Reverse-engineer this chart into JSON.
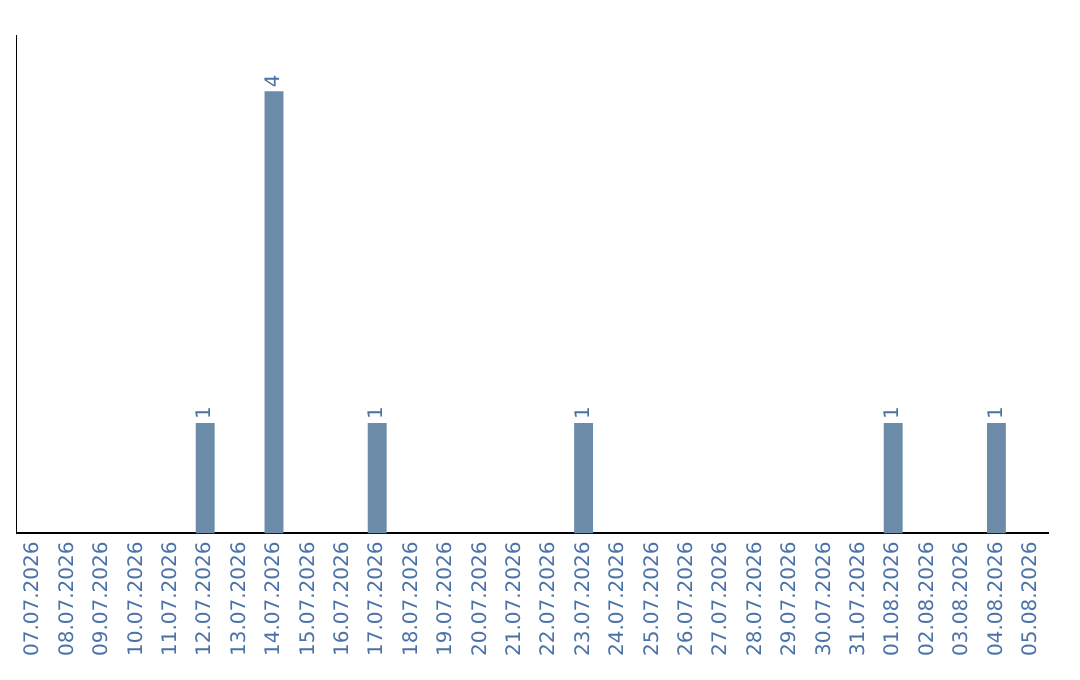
{
  "chart_data": {
    "type": "bar",
    "categories": [
      "07.07.2026",
      "08.07.2026",
      "09.07.2026",
      "10.07.2026",
      "11.07.2026",
      "12.07.2026",
      "13.07.2026",
      "14.07.2026",
      "15.07.2026",
      "16.07.2026",
      "17.07.2026",
      "18.07.2026",
      "19.07.2026",
      "20.07.2026",
      "21.07.2026",
      "22.07.2026",
      "23.07.2026",
      "24.07.2026",
      "25.07.2026",
      "26.07.2026",
      "27.07.2026",
      "28.07.2026",
      "29.07.2026",
      "30.07.2026",
      "31.07.2026",
      "01.08.2026",
      "02.08.2026",
      "03.08.2026",
      "04.08.2026",
      "05.08.2026"
    ],
    "values": [
      0,
      0,
      0,
      0,
      0,
      1,
      0,
      4,
      0,
      0,
      1,
      0,
      0,
      0,
      0,
      0,
      1,
      0,
      0,
      0,
      0,
      0,
      0,
      0,
      0,
      1,
      0,
      0,
      1,
      0
    ],
    "value_labels": [
      null,
      null,
      null,
      null,
      null,
      "1",
      null,
      "4",
      null,
      null,
      "1",
      null,
      null,
      null,
      null,
      null,
      "1",
      null,
      null,
      null,
      null,
      null,
      null,
      null,
      null,
      "1",
      null,
      null,
      "1",
      null
    ],
    "color": "#6c8ba8",
    "tick_labels": "x",
    "grid": false,
    "legend": false
  }
}
